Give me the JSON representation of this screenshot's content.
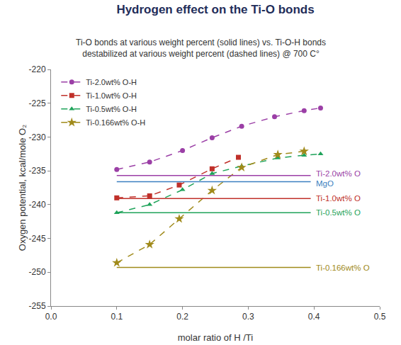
{
  "chart_data": {
    "type": "line",
    "title": "Hydrogen effect on the Ti-O bonds",
    "subtitle": [
      "Ti-O bonds at various weight percent (solid lines) vs. Ti-O-H bonds",
      "destabilized at various weight percent (dashed lines) @ 700 C°"
    ],
    "x_label": "molar ratio of H /Ti",
    "y_label": "Oxygen potential, kcal/mole O₂",
    "xlim": [
      0,
      0.5
    ],
    "xticks": [
      {
        "value": 0,
        "label": "0.0"
      },
      0.1,
      0.2,
      0.3,
      0.4,
      0.5
    ],
    "ylim": [
      -255,
      -220
    ],
    "yticks": [
      -255,
      -250,
      -245,
      -240,
      -235,
      -230,
      -225,
      -220
    ],
    "grid": false,
    "legend": "upper left",
    "series": [
      {
        "name": "Ti-2.0wt% O-H",
        "color": "#9b3fa6",
        "marker": "circle",
        "line_style": "dash",
        "x": [
          0.1,
          0.15,
          0.2,
          0.245,
          0.29,
          0.34,
          0.385,
          0.41
        ],
        "values": [
          -234.8,
          -233.7,
          -232.0,
          -230.1,
          -228.4,
          -227.0,
          -226.1,
          -225.7
        ]
      },
      {
        "name": "Ti-1.0wt% O-H",
        "color": "#c0302a",
        "marker": "square",
        "line_style": "dash",
        "x": [
          0.1,
          0.15,
          0.195,
          0.245,
          0.285
        ],
        "values": [
          -239.0,
          -238.7,
          -237.1,
          -234.7,
          -233.0
        ]
      },
      {
        "name": "Ti-0.5wt% O-H",
        "color": "#1fa35a",
        "marker": "triangle-up",
        "line_style": "dash",
        "x": [
          0.1,
          0.15,
          0.2,
          0.245,
          0.29,
          0.345,
          0.385,
          0.41
        ],
        "values": [
          -241.2,
          -240.0,
          -237.8,
          -235.4,
          -234.3,
          -233.1,
          -232.7,
          -232.5
        ]
      },
      {
        "name": "Ti-0.166wt% O-H",
        "color": "#a08a1a",
        "marker": "star",
        "line_style": "dash",
        "x": [
          0.1,
          0.15,
          0.195,
          0.245,
          0.29,
          0.345,
          0.385
        ],
        "values": [
          -248.6,
          -245.9,
          -242.1,
          -237.9,
          -234.5,
          -232.6,
          -232.1
        ]
      },
      {
        "name": "Ti-2.0wt% O",
        "color": "#9b3fa6",
        "marker": "none",
        "line_style": "solid",
        "x": [
          0.1,
          0.395
        ],
        "values": [
          -235.7,
          -235.7
        ]
      },
      {
        "name": "MgO",
        "color": "#3c7fc0",
        "marker": "none",
        "line_style": "solid",
        "x": [
          0.1,
          0.395
        ],
        "values": [
          -236.6,
          -236.6
        ]
      },
      {
        "name": "Ti-1.0wt% O",
        "color": "#c0302a",
        "marker": "none",
        "line_style": "solid",
        "x": [
          0.1,
          0.395
        ],
        "values": [
          -239.1,
          -239.1
        ]
      },
      {
        "name": "Ti-0.5wt% O",
        "color": "#1fa35a",
        "marker": "none",
        "line_style": "solid",
        "x": [
          0.1,
          0.395
        ],
        "values": [
          -241.2,
          -241.2
        ]
      },
      {
        "name": "Ti-0.166wt% O",
        "color": "#a08a1a",
        "marker": "none",
        "line_style": "solid",
        "x": [
          0.1,
          0.395
        ],
        "values": [
          -249.3,
          -249.3
        ]
      }
    ]
  }
}
